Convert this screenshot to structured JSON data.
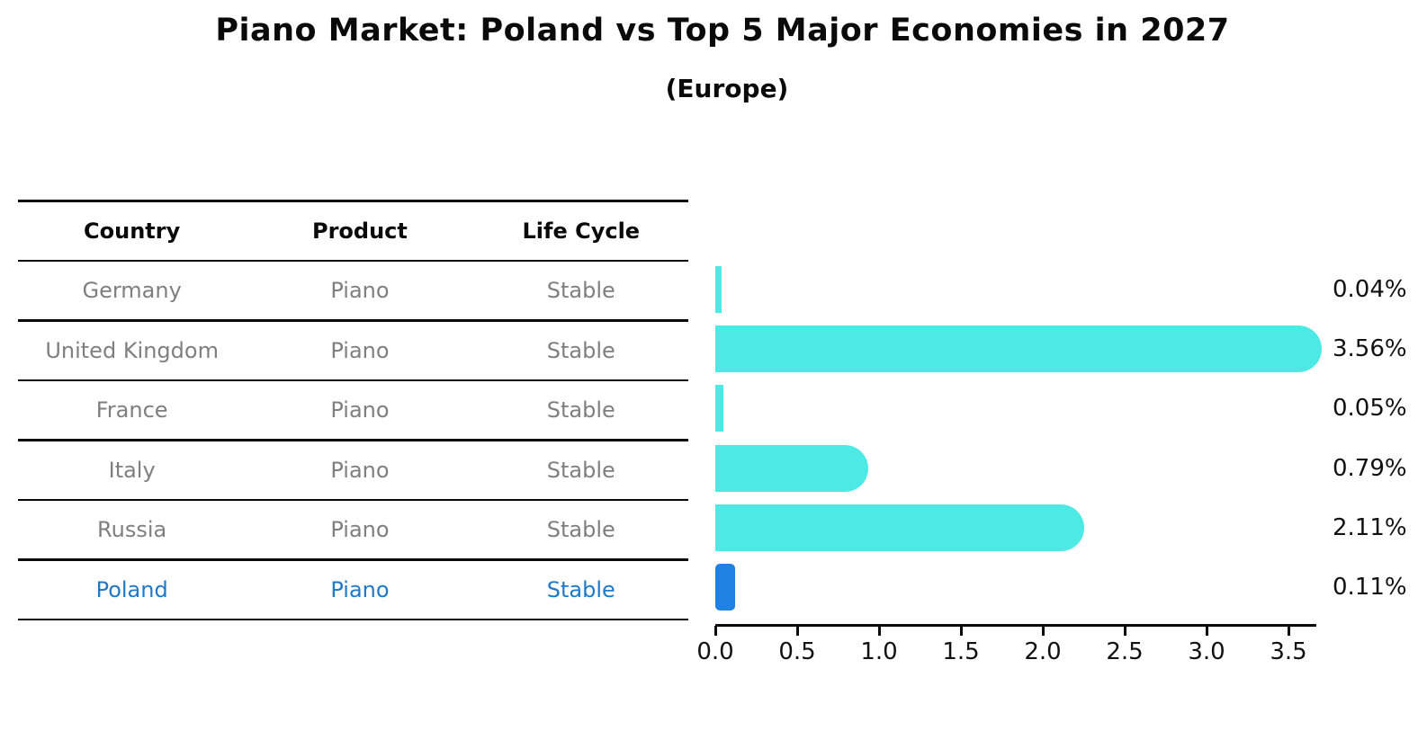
{
  "title": "Piano Market: Poland vs Top 5 Major Economies in 2027",
  "subtitle": "(Europe)",
  "table": {
    "headers": [
      "Country",
      "Product",
      "Life Cycle"
    ],
    "rows": [
      {
        "country": "Germany",
        "product": "Piano",
        "life_cycle": "Stable",
        "highlight": false
      },
      {
        "country": "United Kingdom",
        "product": "Piano",
        "life_cycle": "Stable",
        "highlight": false
      },
      {
        "country": "France",
        "product": "Piano",
        "life_cycle": "Stable",
        "highlight": false
      },
      {
        "country": "Italy",
        "product": "Piano",
        "life_cycle": "Stable",
        "highlight": false
      },
      {
        "country": "Russia",
        "product": "Piano",
        "life_cycle": "Stable",
        "highlight": false
      },
      {
        "country": "Poland",
        "product": "Piano",
        "life_cycle": "Stable",
        "highlight": true
      }
    ]
  },
  "chart_data": {
    "type": "bar",
    "orientation": "horizontal",
    "title": "Piano Market: Poland vs Top 5 Major Economies in 2027",
    "subtitle": "(Europe)",
    "categories": [
      "Germany",
      "United Kingdom",
      "France",
      "Italy",
      "Russia",
      "Poland"
    ],
    "values": [
      0.04,
      3.56,
      0.05,
      0.79,
      2.11,
      0.11
    ],
    "value_labels": [
      "0.04%",
      "3.56%",
      "0.05%",
      "0.79%",
      "2.11%",
      "0.11%"
    ],
    "x_tick_labels": [
      "0.0",
      "0.5",
      "1.0",
      "1.5",
      "2.0",
      "2.5",
      "3.0",
      "3.5"
    ],
    "x_tick_values": [
      0.0,
      0.5,
      1.0,
      1.5,
      2.0,
      2.5,
      3.0,
      3.5
    ],
    "xlim": [
      0,
      3.67
    ],
    "grid": false,
    "legend": false,
    "highlight_index": 5,
    "colors": {
      "bar": "#4de9e4",
      "highlight_bar": "#1f82e3",
      "highlight_text": "#1f79c7",
      "row_text": "#7f7f7f",
      "header_text": "#0a0a0a",
      "value_text": "#111111"
    }
  }
}
